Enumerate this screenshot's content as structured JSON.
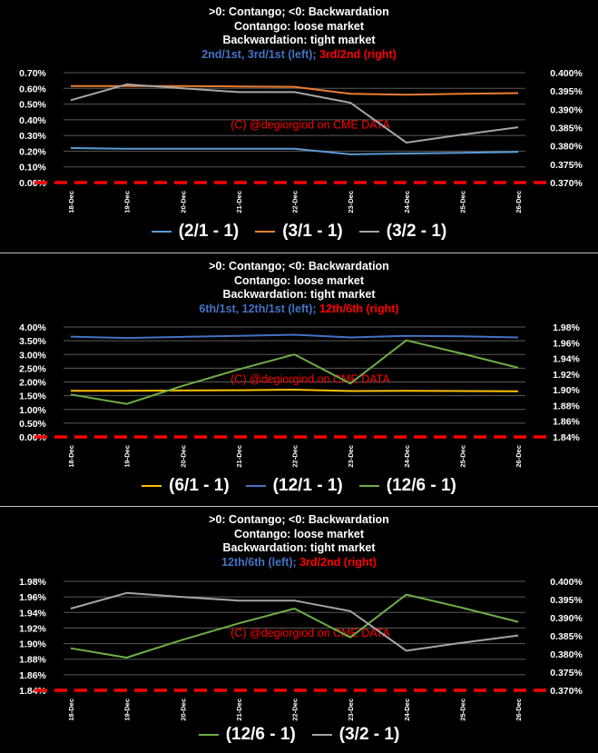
{
  "panels": [
    {
      "titles": {
        "line1": ">0: Contango; <0: Backwardation",
        "line2": "Contango: loose market",
        "line3": "Backwardation: tight market",
        "line4_blue": "2nd/1st, 3rd/1st (left);",
        "line4_red": " 3rd/2nd (right)"
      },
      "watermark": "(C) @degiorgiod on CME DATA",
      "legend": [
        {
          "label": "(2/1 - 1)",
          "color": "#5b9bd5"
        },
        {
          "label": "(3/1 - 1)",
          "color": "#ed7d31"
        },
        {
          "label": "(3/2 - 1)",
          "color": "#a5a5a5"
        }
      ]
    },
    {
      "titles": {
        "line1": ">0: Contango; <0: Backwardation",
        "line2": "Contango: loose market",
        "line3": "Backwardation: tight market",
        "line4_blue": "6th/1st, 12th/1st (left);",
        "line4_red": " 12th/6th (right)"
      },
      "watermark": "(C) @degiorgiod on CME DATA",
      "legend": [
        {
          "label": "(6/1 - 1)",
          "color": "#ffc000"
        },
        {
          "label": "(12/1 - 1)",
          "color": "#4472c4"
        },
        {
          "label": "(12/6 - 1)",
          "color": "#70ad47"
        }
      ]
    },
    {
      "titles": {
        "line1": ">0: Contango; <0: Backwardation",
        "line2": "Contango: loose market",
        "line3": "Backwardation: tight market",
        "line4_blue": "12th/6th (left);",
        "line4_red": " 3rd/2nd (right)"
      },
      "watermark": "(C) @degiorgiod on CME DATA",
      "legend": [
        {
          "label": "(12/6 - 1)",
          "color": "#70ad47"
        },
        {
          "label": "(3/2 - 1)",
          "color": "#a5a5a5"
        }
      ]
    }
  ],
  "chart_data": [
    {
      "type": "line",
      "x": [
        "18-Dec",
        "19-Dec",
        "20-Dec",
        "21-Dec",
        "22-Dec",
        "23-Dec",
        "24-Dec",
        "25-Dec",
        "26-Dec"
      ],
      "left_axis": {
        "ylim": [
          0.0,
          0.7
        ],
        "ticks": [
          "0.00%",
          "0.10%",
          "0.20%",
          "0.30%",
          "0.40%",
          "0.50%",
          "0.60%",
          "0.70%"
        ]
      },
      "right_axis": {
        "ylim": [
          0.37,
          0.4
        ],
        "ticks": [
          "0.370%",
          "0.375%",
          "0.380%",
          "0.385%",
          "0.390%",
          "0.395%",
          "0.400%"
        ]
      },
      "baseline": {
        "value": 0.0,
        "color": "#ff0000",
        "style": "dashed"
      },
      "grid": true,
      "series": [
        {
          "name": "(2/1 - 1)",
          "axis": "left",
          "color": "#5b9bd5",
          "values": [
            0.22,
            0.215,
            0.215,
            0.215,
            0.215,
            0.18,
            0.185,
            0.19,
            0.195
          ]
        },
        {
          "name": "(3/1 - 1)",
          "axis": "left",
          "color": "#ed7d31",
          "values": [
            0.615,
            0.615,
            0.615,
            0.612,
            0.61,
            0.565,
            0.56,
            0.565,
            0.57
          ]
        },
        {
          "name": "(3/2 - 1)",
          "axis": "right",
          "color": "#a5a5a5",
          "values": [
            0.3925,
            0.3968,
            0.3957,
            0.3947,
            0.3947,
            0.3918,
            0.3809,
            0.3831,
            0.3851
          ]
        }
      ]
    },
    {
      "type": "line",
      "x": [
        "18-Dec",
        "19-Dec",
        "20-Dec",
        "21-Dec",
        "22-Dec",
        "23-Dec",
        "24-Dec",
        "25-Dec",
        "26-Dec"
      ],
      "left_axis": {
        "ylim": [
          0.0,
          4.0
        ],
        "ticks": [
          "0.00%",
          "0.50%",
          "1.00%",
          "1.50%",
          "2.00%",
          "2.50%",
          "3.00%",
          "3.50%",
          "4.00%"
        ]
      },
      "right_axis": {
        "ylim": [
          1.84,
          1.98
        ],
        "ticks": [
          "1.84%",
          "1.86%",
          "1.88%",
          "1.90%",
          "1.92%",
          "1.94%",
          "1.96%",
          "1.98%"
        ]
      },
      "baseline": {
        "value": 0.0,
        "color": "#ff0000",
        "style": "dashed"
      },
      "grid": true,
      "series": [
        {
          "name": "(6/1 - 1)",
          "axis": "left",
          "color": "#ffc000",
          "values": [
            1.68,
            1.68,
            1.69,
            1.7,
            1.72,
            1.67,
            1.68,
            1.67,
            1.66
          ]
        },
        {
          "name": "(12/1 - 1)",
          "axis": "left",
          "color": "#4472c4",
          "values": [
            3.65,
            3.6,
            3.64,
            3.68,
            3.72,
            3.62,
            3.68,
            3.66,
            3.62
          ]
        },
        {
          "name": "(12/6 - 1)",
          "axis": "right",
          "color": "#70ad47",
          "values": [
            1.894,
            1.882,
            1.905,
            1.926,
            1.945,
            1.908,
            1.963,
            1.946,
            1.928
          ]
        }
      ]
    },
    {
      "type": "line",
      "x": [
        "18-Dec",
        "19-Dec",
        "20-Dec",
        "21-Dec",
        "22-Dec",
        "23-Dec",
        "24-Dec",
        "25-Dec",
        "26-Dec"
      ],
      "left_axis": {
        "ylim": [
          1.84,
          1.98
        ],
        "ticks": [
          "1.84%",
          "1.86%",
          "1.88%",
          "1.90%",
          "1.92%",
          "1.94%",
          "1.96%",
          "1.98%"
        ]
      },
      "right_axis": {
        "ylim": [
          0.37,
          0.4
        ],
        "ticks": [
          "0.370%",
          "0.375%",
          "0.380%",
          "0.385%",
          "0.390%",
          "0.395%",
          "0.400%"
        ]
      },
      "baseline": {
        "value": 1.84,
        "color": "#ff0000",
        "style": "dashed"
      },
      "grid": true,
      "series": [
        {
          "name": "(12/6 - 1)",
          "axis": "left",
          "color": "#70ad47",
          "values": [
            1.894,
            1.882,
            1.905,
            1.926,
            1.945,
            1.908,
            1.963,
            1.946,
            1.928
          ]
        },
        {
          "name": "(3/2 - 1)",
          "axis": "right",
          "color": "#a5a5a5",
          "values": [
            0.3925,
            0.3968,
            0.3957,
            0.3947,
            0.3947,
            0.3918,
            0.3809,
            0.3831,
            0.3851
          ]
        }
      ]
    }
  ]
}
